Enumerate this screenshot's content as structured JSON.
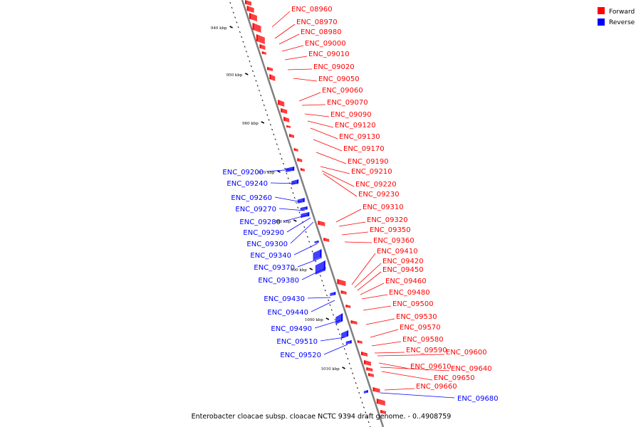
{
  "caption": "Enterobacter cloacae subsp. cloacae NCTC 9394 draft genome. - 0..4908759",
  "legend": [
    {
      "label": "Forward",
      "color": "#ff0000"
    },
    {
      "label": "Reverse",
      "color": "#0000ff"
    }
  ],
  "colors": {
    "forward": "#ff0000",
    "reverse": "#0000ff",
    "backbone": "#808080"
  },
  "ticks": [
    "940 kbp",
    "950 kbp",
    "960 kbp",
    "970 kbp",
    "980 kbp",
    "990 kbp",
    "1000 kbp",
    "1010 kbp"
  ],
  "forward_labels": [
    "ENC_08960",
    "ENC_08970",
    "ENC_08980",
    "ENC_09000",
    "ENC_09010",
    "ENC_09020",
    "ENC_09050",
    "ENC_09060",
    "ENC_09070",
    "ENC_09090",
    "ENC_09120",
    "ENC_09130",
    "ENC_09170",
    "ENC_09190",
    "ENC_09210",
    "ENC_09220",
    "ENC_09230",
    "ENC_09310",
    "ENC_09320",
    "ENC_09350",
    "ENC_09360",
    "ENC_09410",
    "ENC_09420",
    "ENC_09450",
    "ENC_09460",
    "ENC_09480",
    "ENC_09500",
    "ENC_09530",
    "ENC_09570",
    "ENC_09580",
    "ENC_09590",
    "ENC_09600",
    "ENC_09610",
    "ENC_09640",
    "ENC_09650",
    "ENC_09660"
  ],
  "reverse_labels": [
    "ENC_09200",
    "ENC_09240",
    "ENC_09260",
    "ENC_09270",
    "ENC_09280",
    "ENC_09290",
    "ENC_09300",
    "ENC_09340",
    "ENC_09370",
    "ENC_09380",
    "ENC_09430",
    "ENC_09440",
    "ENC_09490",
    "ENC_09510",
    "ENC_09520",
    "ENC_09680"
  ]
}
